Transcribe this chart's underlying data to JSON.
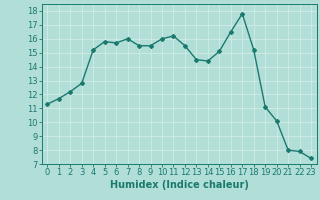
{
  "x": [
    0,
    1,
    2,
    3,
    4,
    5,
    6,
    7,
    8,
    9,
    10,
    11,
    12,
    13,
    14,
    15,
    16,
    17,
    18,
    19,
    20,
    21,
    22,
    23
  ],
  "y": [
    11.3,
    11.7,
    12.2,
    12.8,
    15.2,
    15.8,
    15.7,
    16.0,
    15.5,
    15.5,
    16.0,
    16.2,
    15.5,
    14.5,
    14.4,
    15.1,
    16.5,
    17.8,
    15.2,
    11.1,
    10.1,
    8.0,
    7.9,
    7.4
  ],
  "xlabel": "Humidex (Indice chaleur)",
  "ylim": [
    7,
    18.5
  ],
  "xlim": [
    -0.5,
    23.5
  ],
  "yticks": [
    7,
    8,
    9,
    10,
    11,
    12,
    13,
    14,
    15,
    16,
    17,
    18
  ],
  "xticks": [
    0,
    1,
    2,
    3,
    4,
    5,
    6,
    7,
    8,
    9,
    10,
    11,
    12,
    13,
    14,
    15,
    16,
    17,
    18,
    19,
    20,
    21,
    22,
    23
  ],
  "line_color": "#1a7a6e",
  "bg_color": "#b2ded8",
  "grid_color": "#d0ebe6",
  "marker": "D",
  "marker_size": 2.0,
  "line_width": 1.0,
  "xlabel_fontsize": 7.0,
  "tick_fontsize": 6.0
}
